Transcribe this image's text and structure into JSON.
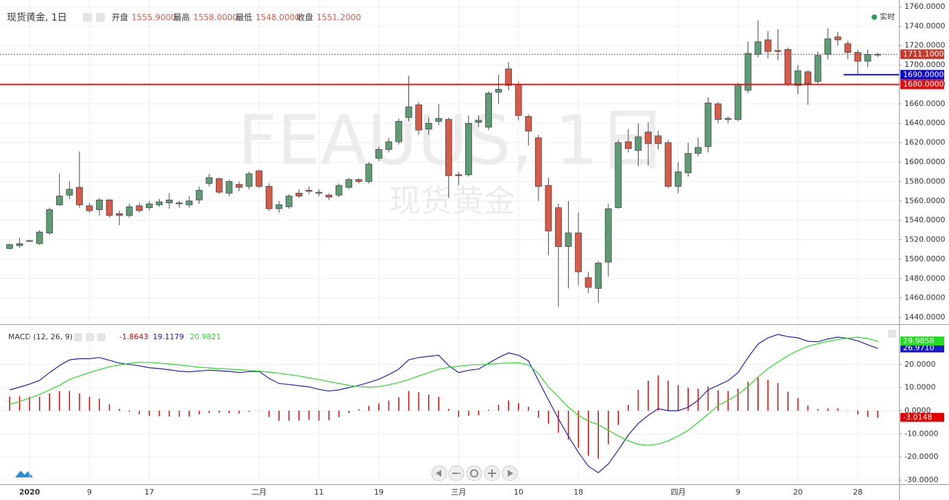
{
  "chart_data": [
    {
      "type": "candlestick",
      "title": "现货黄金, 1日",
      "watermark": "FEAUUS, 1日",
      "watermark_sub": "现货黄金",
      "status": "实时",
      "ohlc_legend": [
        {
          "name": "开盘",
          "value": "1555.9000"
        },
        {
          "name": "最高",
          "value": "1558.0000"
        },
        {
          "name": "最低",
          "value": "1548.0000"
        },
        {
          "name": "收盘",
          "value": "1551.2000"
        }
      ],
      "categories": [
        null,
        null,
        "2020",
        null,
        null,
        null,
        null,
        null,
        "9",
        null,
        null,
        null,
        null,
        null,
        "17",
        null,
        null,
        null,
        null,
        null,
        null,
        null,
        null,
        null,
        null,
        "二月",
        null,
        null,
        null,
        null,
        null,
        "11",
        null,
        null,
        null,
        null,
        null,
        "19",
        null,
        null,
        null,
        null,
        null,
        null,
        null,
        "三月",
        null,
        null,
        null,
        null,
        null,
        "10",
        null,
        null,
        null,
        null,
        null,
        "18",
        null,
        null,
        null,
        null,
        null,
        null,
        null,
        null,
        null,
        "四月",
        null,
        null,
        null,
        null,
        null,
        "9",
        null,
        null,
        null,
        null,
        null,
        "20",
        null,
        null,
        null,
        null,
        null,
        "28",
        null,
        null
      ],
      "open": [
        1511,
        1514,
        1519,
        1516,
        1527,
        1556,
        1566,
        1574,
        1555,
        1551,
        1561,
        1547,
        1545,
        1555,
        1553,
        1556,
        1558,
        1557,
        1556,
        1561,
        1578,
        1583,
        1568,
        1577,
        1575,
        1591,
        1575,
        1552,
        1554,
        1568,
        1571,
        1568,
        1566,
        1566,
        1574,
        1582,
        1580,
        1604,
        1613,
        1621,
        1646,
        1659,
        1634,
        1642,
        1644,
        1587,
        1587,
        1641,
        1636,
        1672,
        1696,
        1680,
        1647,
        1625,
        1576,
        1553,
        1513,
        1527,
        1481,
        1470,
        1497,
        1553,
        1621,
        1612,
        1631,
        1627,
        1620,
        1575,
        1589,
        1609,
        1616,
        1660,
        1644,
        1644,
        1674,
        1711,
        1726,
        1715,
        1716,
        1679,
        1693,
        1683,
        1711,
        1729,
        1722,
        1713,
        1704,
        1711
      ],
      "high": [
        1516,
        1522,
        1520,
        1530,
        1553,
        1588,
        1580,
        1611,
        1558,
        1563,
        1562,
        1550,
        1557,
        1558,
        1560,
        1562,
        1568,
        1560,
        1565,
        1575,
        1588,
        1584,
        1582,
        1580,
        1590,
        1592,
        1578,
        1560,
        1567,
        1572,
        1575,
        1572,
        1568,
        1578,
        1584,
        1583,
        1600,
        1616,
        1625,
        1645,
        1689,
        1662,
        1646,
        1660,
        1646,
        1590,
        1648,
        1648,
        1673,
        1690,
        1703,
        1683,
        1649,
        1628,
        1584,
        1557,
        1560,
        1548,
        1487,
        1498,
        1557,
        1623,
        1634,
        1640,
        1641,
        1632,
        1623,
        1600,
        1620,
        1625,
        1667,
        1662,
        1647,
        1682,
        1724,
        1746,
        1735,
        1737,
        1718,
        1700,
        1695,
        1714,
        1738,
        1734,
        1725,
        1716,
        1716,
        1713
      ],
      "low": [
        1510,
        1512,
        1518,
        1515,
        1525,
        1555,
        1562,
        1553,
        1548,
        1545,
        1543,
        1535,
        1543,
        1548,
        1550,
        1554,
        1552,
        1553,
        1553,
        1557,
        1575,
        1567,
        1565,
        1570,
        1572,
        1573,
        1550,
        1548,
        1552,
        1563,
        1567,
        1565,
        1561,
        1564,
        1572,
        1578,
        1578,
        1601,
        1610,
        1618,
        1642,
        1628,
        1628,
        1638,
        1563,
        1576,
        1585,
        1636,
        1633,
        1660,
        1674,
        1643,
        1617,
        1560,
        1504,
        1451,
        1470,
        1473,
        1465,
        1455,
        1482,
        1552,
        1610,
        1596,
        1596,
        1613,
        1573,
        1568,
        1585,
        1606,
        1610,
        1640,
        1640,
        1642,
        1671,
        1708,
        1707,
        1705,
        1678,
        1670,
        1659,
        1681,
        1706,
        1720,
        1706,
        1690,
        1698,
        1708
      ],
      "close": [
        1515,
        1516,
        1519,
        1528,
        1551,
        1565,
        1572,
        1556,
        1550,
        1561,
        1545,
        1545,
        1554,
        1550,
        1557,
        1559,
        1561,
        1558,
        1560,
        1571,
        1584,
        1569,
        1580,
        1574,
        1588,
        1575,
        1552,
        1556,
        1565,
        1565,
        1570,
        1569,
        1564,
        1576,
        1582,
        1580,
        1598,
        1613,
        1621,
        1642,
        1657,
        1633,
        1640,
        1645,
        1586,
        1586,
        1640,
        1643,
        1671,
        1675,
        1679,
        1648,
        1632,
        1575,
        1529,
        1513,
        1527,
        1487,
        1471,
        1496,
        1552,
        1620,
        1614,
        1626,
        1619,
        1619,
        1575,
        1590,
        1609,
        1615,
        1661,
        1644,
        1645,
        1680,
        1712,
        1724,
        1714,
        1714,
        1680,
        1694,
        1681,
        1710,
        1727,
        1726,
        1713,
        1704,
        1711,
        1711
      ],
      "up_color": "#5e9c76",
      "down_color": "#d65b48",
      "ylim": [
        1433.7,
        1767
      ],
      "yticks": [
        {
          "value": 1440,
          "label": "1440.0000"
        },
        {
          "value": 1460,
          "label": "1460.0000"
        },
        {
          "value": 1480,
          "label": "1480.0000"
        },
        {
          "value": 1500,
          "label": "1500.0000"
        },
        {
          "value": 1520,
          "label": "1520.0000"
        },
        {
          "value": 1540,
          "label": "1540.0000"
        },
        {
          "value": 1560,
          "label": "1560.0000"
        },
        {
          "value": 1580,
          "label": "1580.0000"
        },
        {
          "value": 1600,
          "label": "1600.0000"
        },
        {
          "value": 1620,
          "label": "1620.0000"
        },
        {
          "value": 1640,
          "label": "1640.0000"
        },
        {
          "value": 1660,
          "label": "1660.0000"
        },
        {
          "value": 1680,
          "label": "1680.0000"
        },
        {
          "value": 1700,
          "label": "1700.0000"
        },
        {
          "value": 1720,
          "label": "1720.0000"
        },
        {
          "value": 1740,
          "label": "1740.0000"
        },
        {
          "value": 1760,
          "label": "1760.0000"
        }
      ],
      "price_lines": [
        {
          "value": 1711.1,
          "label": "1711.1000",
          "color": "#c0392b",
          "style": "dotted",
          "extent": "full"
        },
        {
          "value": 1690,
          "label": "1690.0000",
          "color": "#0a0ac8",
          "style": "solid",
          "extent": "partial"
        },
        {
          "value": 1680,
          "label": "1680.0000",
          "color": "#e01010",
          "style": "solid",
          "extent": "full"
        }
      ],
      "grid": true
    },
    {
      "type": "macd",
      "title": "MACD (12, 26, 9)",
      "series": [
        {
          "kind": "histogram",
          "color": "#e00000",
          "legend_value": "-1.8643",
          "last_label": "-3.0148",
          "values": [
            6.2,
            6.2,
            6.0,
            6.1,
            7.5,
            8.5,
            8.5,
            7.5,
            6.0,
            5.2,
            2.8,
            0.8,
            -0.5,
            -1.5,
            -2.3,
            -2.4,
            -2.5,
            -2.7,
            -2.5,
            -1.6,
            -1.0,
            -0.9,
            -1.0,
            -1.2,
            -0.5,
            -0.1,
            -2.7,
            -4.4,
            -4.3,
            -4.2,
            -3.9,
            -4.3,
            -4.1,
            -2.8,
            -1.0,
            0.6,
            2.0,
            3.2,
            4.4,
            5.8,
            8.5,
            8.0,
            7.0,
            6.0,
            0.8,
            -2.7,
            -2.2,
            -1.9,
            0.4,
            2.6,
            4.4,
            3.3,
            1.7,
            -3.0,
            -5.6,
            -9.5,
            -12.5,
            -16.0,
            -19.5,
            -20.8,
            -14.5,
            -6.1,
            2.5,
            9.0,
            13.0,
            15.3,
            13.0,
            11.0,
            10.0,
            9.5,
            10.5,
            8.8,
            8.5,
            9.5,
            12.5,
            14.3,
            13.3,
            12.0,
            8.2,
            5.5,
            2.2,
            0.8,
            1.0,
            1.0,
            -0.1,
            -1.6,
            -2.7,
            -3.0148
          ]
        },
        {
          "kind": "line",
          "color": "#1a1ac8",
          "legend_value": "19.1179",
          "last_label": "26.9710",
          "values": [
            9.0,
            10.2,
            11.5,
            13.1,
            16.5,
            19.5,
            22.0,
            22.5,
            22.5,
            23.0,
            21.8,
            20.6,
            20.0,
            19.4,
            18.6,
            18.2,
            17.7,
            17.1,
            16.8,
            17.2,
            17.5,
            17.3,
            17.0,
            16.5,
            16.9,
            17.0,
            14.0,
            11.8,
            11.3,
            10.8,
            10.3,
            9.2,
            8.5,
            9.0,
            10.0,
            11.0,
            12.2,
            13.6,
            15.6,
            18.0,
            22.0,
            23.0,
            23.5,
            24.0,
            19.5,
            16.5,
            17.5,
            18.0,
            20.5,
            23.0,
            25.0,
            24.0,
            21.5,
            13.0,
            4.7,
            -3.5,
            -11.0,
            -18.0,
            -24.0,
            -26.8,
            -23.0,
            -17.0,
            -10.5,
            -5.5,
            -2.0,
            0.9,
            0.0,
            0.0,
            1.5,
            4.5,
            9.0,
            11.0,
            13.0,
            16.5,
            23.0,
            28.8,
            31.5,
            33.0,
            32.0,
            31.5,
            30.0,
            29.8,
            31.0,
            31.8,
            31.3,
            30.2,
            28.5,
            26.971
          ]
        },
        {
          "kind": "line",
          "color": "#22dd22",
          "legend_value": "20.9821",
          "last_label": "29.9858",
          "values": [
            2.8,
            4.0,
            5.5,
            7.0,
            9.0,
            11.0,
            13.5,
            15.0,
            16.5,
            17.8,
            19.0,
            19.8,
            20.5,
            20.9,
            20.9,
            20.6,
            20.2,
            19.8,
            19.3,
            18.8,
            18.5,
            18.2,
            18.0,
            17.7,
            17.4,
            17.1,
            16.7,
            16.2,
            15.6,
            15.0,
            14.2,
            13.5,
            12.6,
            11.8,
            11.0,
            10.4,
            10.2,
            10.4,
            11.2,
            12.2,
            13.5,
            15.0,
            16.5,
            18.0,
            18.7,
            19.2,
            19.7,
            19.9,
            20.1,
            20.4,
            20.6,
            20.7,
            19.8,
            16.0,
            10.3,
            6.0,
            1.5,
            -2.0,
            -4.5,
            -6.0,
            -8.5,
            -10.9,
            -13.0,
            -14.5,
            -15.0,
            -14.4,
            -13.0,
            -11.0,
            -8.5,
            -5.0,
            -1.5,
            2.2,
            4.5,
            7.0,
            10.5,
            14.5,
            18.2,
            21.0,
            23.8,
            26.0,
            27.8,
            29.0,
            30.0,
            30.8,
            31.4,
            31.8,
            31.2,
            29.9858
          ]
        }
      ],
      "ylim": [
        -31.5,
        36.8
      ],
      "yticks": [
        {
          "value": -30,
          "label": "-30.0000"
        },
        {
          "value": -20,
          "label": "-20.0000"
        },
        {
          "value": -10,
          "label": "-10.0000"
        },
        {
          "value": 0,
          "label": "0.0000"
        },
        {
          "value": 10,
          "label": "10.0000"
        },
        {
          "value": 20,
          "label": "20.0000"
        }
      ],
      "grid": true
    }
  ]
}
